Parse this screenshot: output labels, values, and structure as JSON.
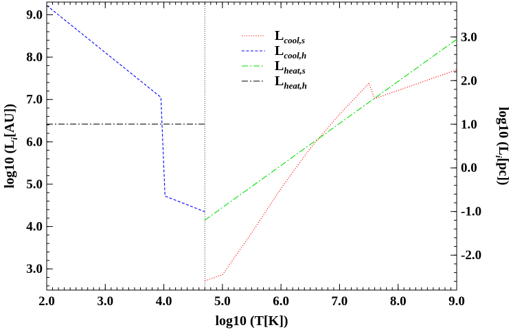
{
  "chart_data": {
    "type": "line",
    "xlabel": "log10 (T[K])",
    "ylabel_left": "log10 (L_i [AU])",
    "ylabel_right": "log10 (L_i [pc])",
    "xlim": [
      2.0,
      9.0
    ],
    "ylim_left": [
      2.5,
      9.3
    ],
    "ylim_right": [
      -2.8,
      3.8
    ],
    "x_ticks": [
      "2.0",
      "3.0",
      "4.0",
      "5.0",
      "6.0",
      "7.0",
      "8.0",
      "9.0"
    ],
    "y_ticks_left": [
      "3.0",
      "4.0",
      "5.0",
      "6.0",
      "7.0",
      "8.0",
      "9.0"
    ],
    "y_ticks_right": [
      "-2.0",
      "-1.0",
      "0.0",
      "1.0",
      "2.0",
      "3.0"
    ],
    "grid": false,
    "legend_position": "top-right",
    "reference_line": {
      "x": 4.7,
      "style": "dotted"
    },
    "series": [
      {
        "name": "L",
        "subscript": "cool,s",
        "color": "#ff0000",
        "dash": "dotted",
        "points": [
          [
            4.7,
            2.72
          ],
          [
            5.0,
            2.86
          ],
          [
            5.5,
            3.85
          ],
          [
            6.0,
            4.9
          ],
          [
            6.5,
            5.85
          ],
          [
            7.0,
            6.65
          ],
          [
            7.5,
            7.38
          ],
          [
            7.6,
            7.02
          ],
          [
            9.0,
            7.7
          ]
        ]
      },
      {
        "name": "L",
        "subscript": "cool,h",
        "color": "#0000ff",
        "dash": "dashed",
        "points": [
          [
            2.0,
            9.22
          ],
          [
            3.95,
            7.05
          ],
          [
            4.02,
            4.72
          ],
          [
            4.7,
            4.35
          ]
        ]
      },
      {
        "name": "L",
        "subscript": "heat,s",
        "color": "#00dd00",
        "dash": "dashdot",
        "points": [
          [
            4.7,
            4.15
          ],
          [
            9.0,
            8.42
          ]
        ]
      },
      {
        "name": "L",
        "subscript": "heat,h",
        "color": "#000000",
        "dash": "dashdot",
        "points": [
          [
            2.0,
            6.42
          ],
          [
            4.7,
            6.42
          ]
        ]
      }
    ]
  }
}
